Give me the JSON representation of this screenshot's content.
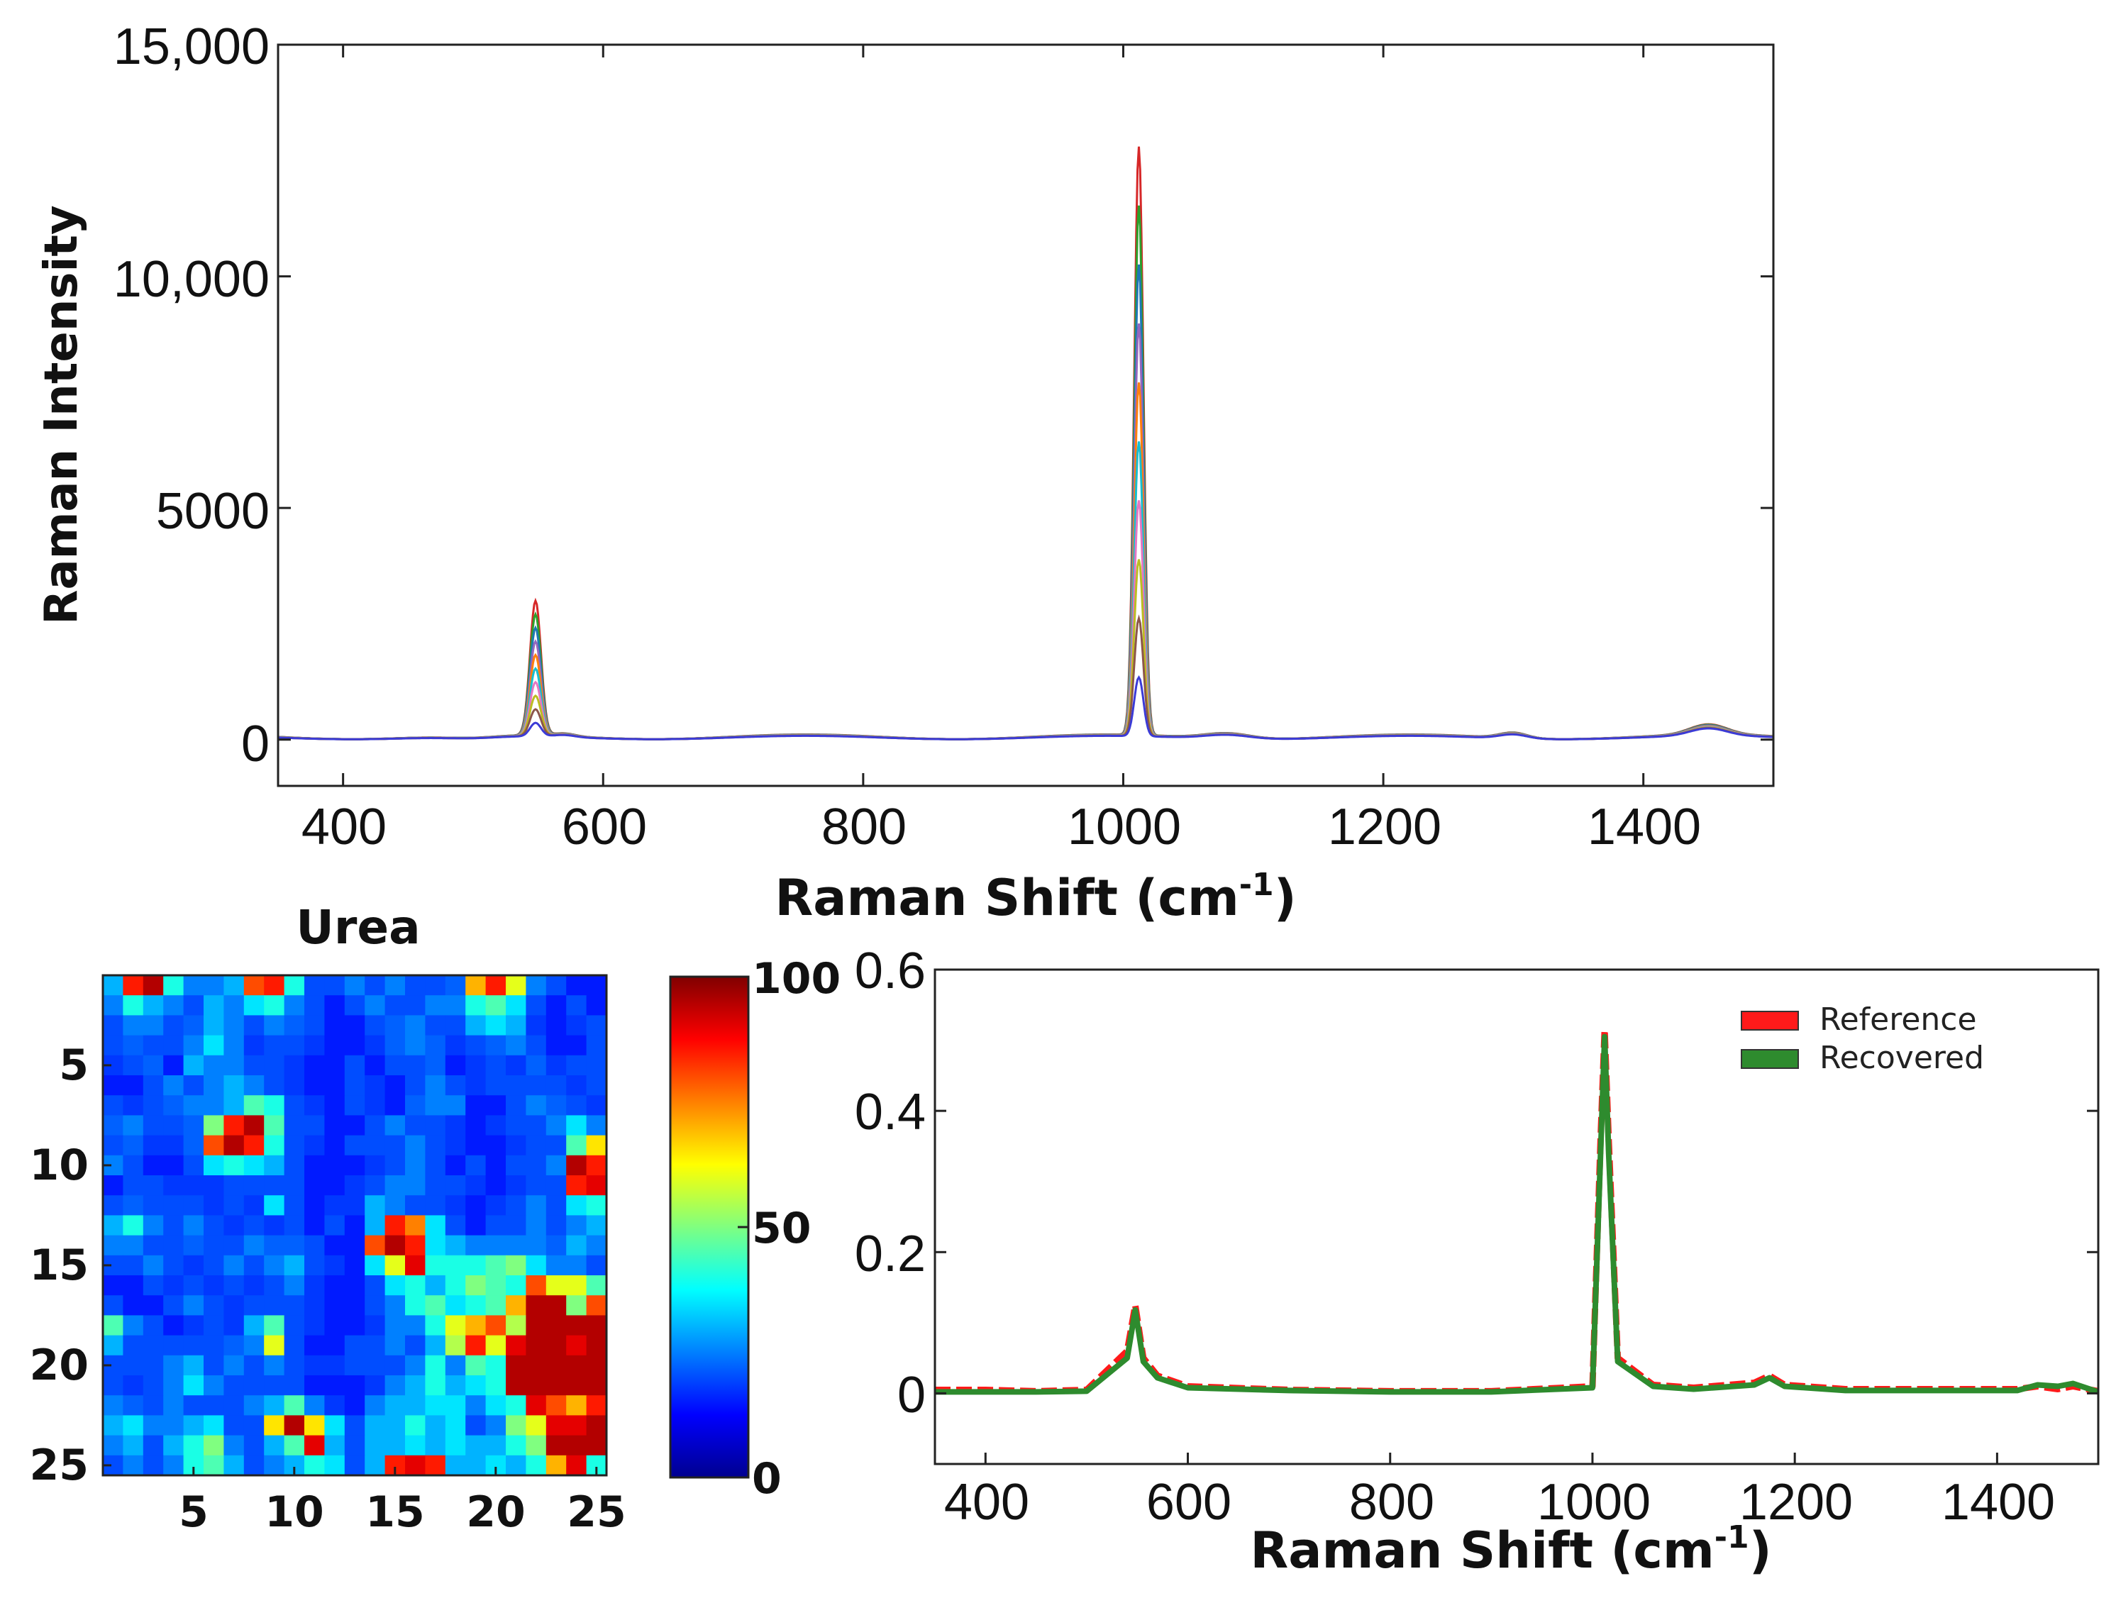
{
  "chart_data": [
    {
      "id": "top",
      "type": "line",
      "title": "",
      "xlabel": "Raman Shift (cm",
      "xlabel_sup": "-1",
      "xlabel_end": ")",
      "ylabel": "Raman Intensity",
      "xlim": [
        350,
        1500
      ],
      "ylim": [
        -1000,
        15000
      ],
      "xticks": [
        400,
        600,
        800,
        1000,
        1200,
        1400
      ],
      "xtick_labels": [
        "400",
        "600",
        "800",
        "1000",
        "1200",
        "1400"
      ],
      "yticks": [
        0,
        5000,
        10000,
        15000
      ],
      "ytick_labels": [
        "0",
        "5000",
        "10,000",
        "15,000"
      ],
      "description_peaks": [
        {
          "x": 548,
          "max": 2900,
          "width": 6
        },
        {
          "x": 1012,
          "max": 12700,
          "width": 5
        }
      ],
      "series_colors": [
        "#d62728",
        "#2ca02c",
        "#1f77b4",
        "#9467bd",
        "#ff7f0e",
        "#17becf",
        "#e377c2",
        "#bcbd22",
        "#8c564b",
        "#3b3bd6"
      ],
      "series_scales": [
        1.0,
        0.9,
        0.8,
        0.7,
        0.6,
        0.5,
        0.4,
        0.3,
        0.2,
        0.1
      ]
    },
    {
      "id": "heatmap",
      "type": "heatmap",
      "title": "Urea",
      "xlim": [
        0.5,
        25.5
      ],
      "ylim": [
        0.5,
        25.5
      ],
      "xticks": [
        5,
        10,
        15,
        20,
        25
      ],
      "yticks": [
        5,
        10,
        15,
        20,
        25
      ],
      "colorbar": {
        "min": 0,
        "max": 100,
        "ticks": [
          0,
          50,
          100
        ],
        "tick_labels": [
          "0",
          "50",
          "100"
        ]
      },
      "values": [
        [
          30,
          85,
          95,
          40,
          25,
          25,
          30,
          80,
          85,
          40,
          20,
          20,
          25,
          20,
          25,
          20,
          20,
          22,
          70,
          85,
          60,
          25,
          20,
          15,
          15
        ],
        [
          25,
          40,
          30,
          25,
          20,
          30,
          25,
          35,
          40,
          25,
          20,
          15,
          20,
          25,
          20,
          20,
          25,
          25,
          40,
          45,
          35,
          20,
          15,
          20,
          15
        ],
        [
          20,
          25,
          25,
          20,
          22,
          30,
          25,
          20,
          25,
          22,
          20,
          15,
          15,
          20,
          22,
          25,
          20,
          20,
          30,
          35,
          30,
          18,
          15,
          18,
          20
        ],
        [
          20,
          22,
          20,
          20,
          25,
          35,
          25,
          18,
          20,
          20,
          18,
          15,
          15,
          18,
          22,
          25,
          22,
          18,
          20,
          22,
          25,
          20,
          15,
          15,
          20
        ],
        [
          18,
          20,
          22,
          15,
          30,
          25,
          25,
          20,
          20,
          18,
          15,
          15,
          20,
          15,
          20,
          20,
          22,
          15,
          18,
          20,
          18,
          22,
          18,
          20,
          20
        ],
        [
          15,
          15,
          20,
          25,
          20,
          25,
          30,
          25,
          20,
          18,
          15,
          15,
          20,
          18,
          15,
          20,
          25,
          20,
          18,
          20,
          20,
          20,
          20,
          18,
          20
        ],
        [
          20,
          18,
          20,
          22,
          25,
          25,
          30,
          45,
          40,
          20,
          18,
          15,
          20,
          18,
          15,
          22,
          25,
          25,
          15,
          15,
          20,
          25,
          22,
          20,
          18
        ],
        [
          22,
          25,
          20,
          20,
          22,
          50,
          85,
          95,
          45,
          20,
          20,
          15,
          15,
          20,
          25,
          20,
          20,
          18,
          15,
          18,
          20,
          20,
          25,
          35,
          25
        ],
        [
          20,
          22,
          18,
          18,
          22,
          80,
          95,
          85,
          40,
          20,
          18,
          15,
          20,
          20,
          20,
          25,
          20,
          18,
          15,
          15,
          18,
          20,
          20,
          45,
          65
        ],
        [
          25,
          20,
          15,
          15,
          20,
          35,
          40,
          35,
          30,
          20,
          15,
          15,
          15,
          18,
          20,
          25,
          20,
          15,
          20,
          15,
          20,
          20,
          25,
          95,
          85
        ],
        [
          15,
          20,
          20,
          18,
          18,
          18,
          20,
          20,
          20,
          20,
          15,
          15,
          18,
          20,
          25,
          25,
          20,
          20,
          18,
          15,
          18,
          20,
          20,
          85,
          90
        ],
        [
          20,
          22,
          20,
          20,
          20,
          18,
          20,
          18,
          35,
          20,
          15,
          18,
          18,
          30,
          25,
          20,
          20,
          18,
          15,
          18,
          20,
          25,
          20,
          35,
          40
        ],
        [
          30,
          40,
          25,
          20,
          25,
          20,
          18,
          20,
          18,
          20,
          15,
          20,
          15,
          30,
          85,
          75,
          35,
          20,
          15,
          20,
          20,
          25,
          20,
          25,
          30
        ],
        [
          25,
          25,
          20,
          20,
          22,
          20,
          20,
          25,
          22,
          22,
          20,
          15,
          15,
          80,
          95,
          85,
          35,
          30,
          25,
          25,
          25,
          25,
          22,
          30,
          25
        ],
        [
          20,
          20,
          25,
          20,
          18,
          20,
          25,
          20,
          25,
          30,
          20,
          18,
          15,
          35,
          60,
          90,
          40,
          40,
          40,
          45,
          50,
          35,
          25,
          25,
          20
        ],
        [
          15,
          15,
          20,
          18,
          20,
          18,
          20,
          18,
          20,
          25,
          18,
          15,
          15,
          20,
          35,
          40,
          30,
          40,
          50,
          45,
          40,
          80,
          60,
          60,
          45
        ],
        [
          20,
          15,
          15,
          20,
          25,
          20,
          18,
          20,
          20,
          20,
          18,
          15,
          15,
          20,
          25,
          40,
          45,
          35,
          40,
          45,
          70,
          95,
          95,
          50,
          80
        ],
        [
          45,
          25,
          20,
          15,
          18,
          20,
          18,
          30,
          45,
          20,
          18,
          15,
          15,
          18,
          25,
          25,
          40,
          60,
          70,
          80,
          55,
          95,
          95,
          95,
          95
        ],
        [
          30,
          20,
          20,
          20,
          20,
          20,
          22,
          25,
          60,
          20,
          15,
          15,
          20,
          20,
          25,
          20,
          30,
          55,
          85,
          60,
          90,
          95,
          95,
          90,
          95
        ],
        [
          20,
          20,
          20,
          25,
          30,
          20,
          25,
          20,
          25,
          20,
          18,
          18,
          20,
          20,
          20,
          25,
          40,
          25,
          45,
          40,
          95,
          95,
          95,
          95,
          95
        ],
        [
          20,
          18,
          20,
          25,
          35,
          25,
          20,
          20,
          20,
          20,
          15,
          15,
          15,
          18,
          25,
          30,
          40,
          30,
          35,
          40,
          95,
          95,
          95,
          95,
          95
        ],
        [
          25,
          22,
          20,
          25,
          20,
          20,
          20,
          25,
          30,
          45,
          25,
          18,
          15,
          25,
          30,
          30,
          35,
          35,
          25,
          35,
          40,
          90,
          80,
          70,
          85
        ],
        [
          30,
          35,
          25,
          25,
          30,
          35,
          20,
          20,
          65,
          95,
          65,
          35,
          20,
          30,
          30,
          40,
          30,
          35,
          20,
          25,
          50,
          60,
          90,
          90,
          95
        ],
        [
          25,
          30,
          20,
          30,
          40,
          50,
          25,
          20,
          30,
          45,
          90,
          30,
          20,
          30,
          30,
          35,
          30,
          35,
          30,
          30,
          40,
          50,
          95,
          95,
          95
        ],
        [
          20,
          25,
          20,
          25,
          40,
          45,
          30,
          20,
          25,
          30,
          40,
          35,
          20,
          30,
          85,
          90,
          85,
          30,
          30,
          35,
          30,
          40,
          70,
          90,
          40
        ]
      ]
    },
    {
      "id": "bottom",
      "type": "line",
      "title": "",
      "xlabel": "Raman Shift (cm",
      "xlabel_sup": "-1",
      "xlabel_end": ")",
      "ylabel": "",
      "xlim": [
        350,
        1500
      ],
      "ylim": [
        -0.1,
        0.6
      ],
      "xticks": [
        400,
        600,
        800,
        1000,
        1200,
        1400
      ],
      "xtick_labels": [
        "400",
        "600",
        "800",
        "1000",
        "1200",
        "1400"
      ],
      "yticks": [
        0,
        0.2,
        0.4,
        0.6
      ],
      "ytick_labels": [
        "0",
        "0.2",
        "0.4",
        "0.6"
      ],
      "series": [
        {
          "name": "Reference",
          "color": "#ff1a1a",
          "x": [
            350,
            400,
            450,
            500,
            540,
            548,
            556,
            570,
            600,
            700,
            800,
            900,
            1000,
            1008,
            1012,
            1016,
            1025,
            1060,
            1100,
            1160,
            1175,
            1190,
            1250,
            1300,
            1350,
            1420,
            1440,
            1460,
            1475,
            1500
          ],
          "y": [
            0.005,
            0.005,
            0.003,
            0.005,
            0.06,
            0.125,
            0.05,
            0.025,
            0.01,
            0.005,
            0.003,
            0.003,
            0.01,
            0.36,
            0.515,
            0.36,
            0.05,
            0.012,
            0.008,
            0.015,
            0.025,
            0.012,
            0.006,
            0.006,
            0.006,
            0.006,
            0.01,
            0.006,
            0.01,
            0.003
          ]
        },
        {
          "name": "Recovered",
          "color": "#2e8b2e",
          "x": [
            350,
            400,
            450,
            500,
            540,
            548,
            556,
            570,
            600,
            700,
            800,
            900,
            1000,
            1008,
            1012,
            1016,
            1025,
            1060,
            1100,
            1160,
            1175,
            1190,
            1250,
            1300,
            1350,
            1420,
            1440,
            1460,
            1475,
            1500
          ],
          "y": [
            0.002,
            0.002,
            0.002,
            0.003,
            0.05,
            0.118,
            0.045,
            0.022,
            0.008,
            0.004,
            0.002,
            0.002,
            0.008,
            0.34,
            0.505,
            0.34,
            0.045,
            0.01,
            0.006,
            0.012,
            0.022,
            0.01,
            0.004,
            0.004,
            0.004,
            0.004,
            0.012,
            0.01,
            0.014,
            0.002
          ]
        }
      ],
      "legend": {
        "position": "top-right",
        "entries": [
          "Reference",
          "Recovered"
        ]
      }
    }
  ]
}
